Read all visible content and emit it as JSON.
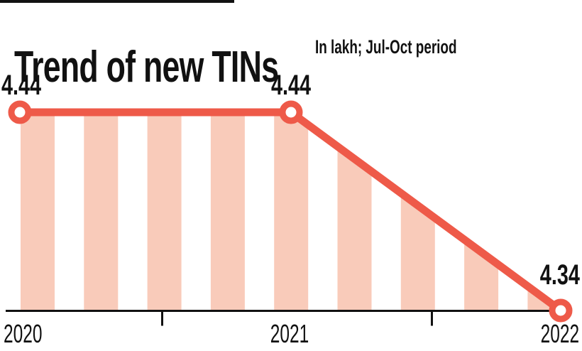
{
  "chart_data": {
    "type": "line",
    "title": "Trend of new TINs",
    "subtitle": "In lakh; Jul-Oct period",
    "categories": [
      "2020",
      "2021",
      "2022"
    ],
    "values": [
      4.44,
      4.44,
      4.34
    ],
    "point_labels": [
      "4.44",
      "4.44",
      "4.34"
    ],
    "xlabel": "",
    "ylabel": "",
    "ylim": [
      4.34,
      4.44
    ],
    "grid": false,
    "legend_position": "none",
    "colors": {
      "line": "#ee5a49",
      "area_stripe": "#f9cbba",
      "axis": "#111111",
      "text": "#111111",
      "background": "#ffffff"
    }
  }
}
